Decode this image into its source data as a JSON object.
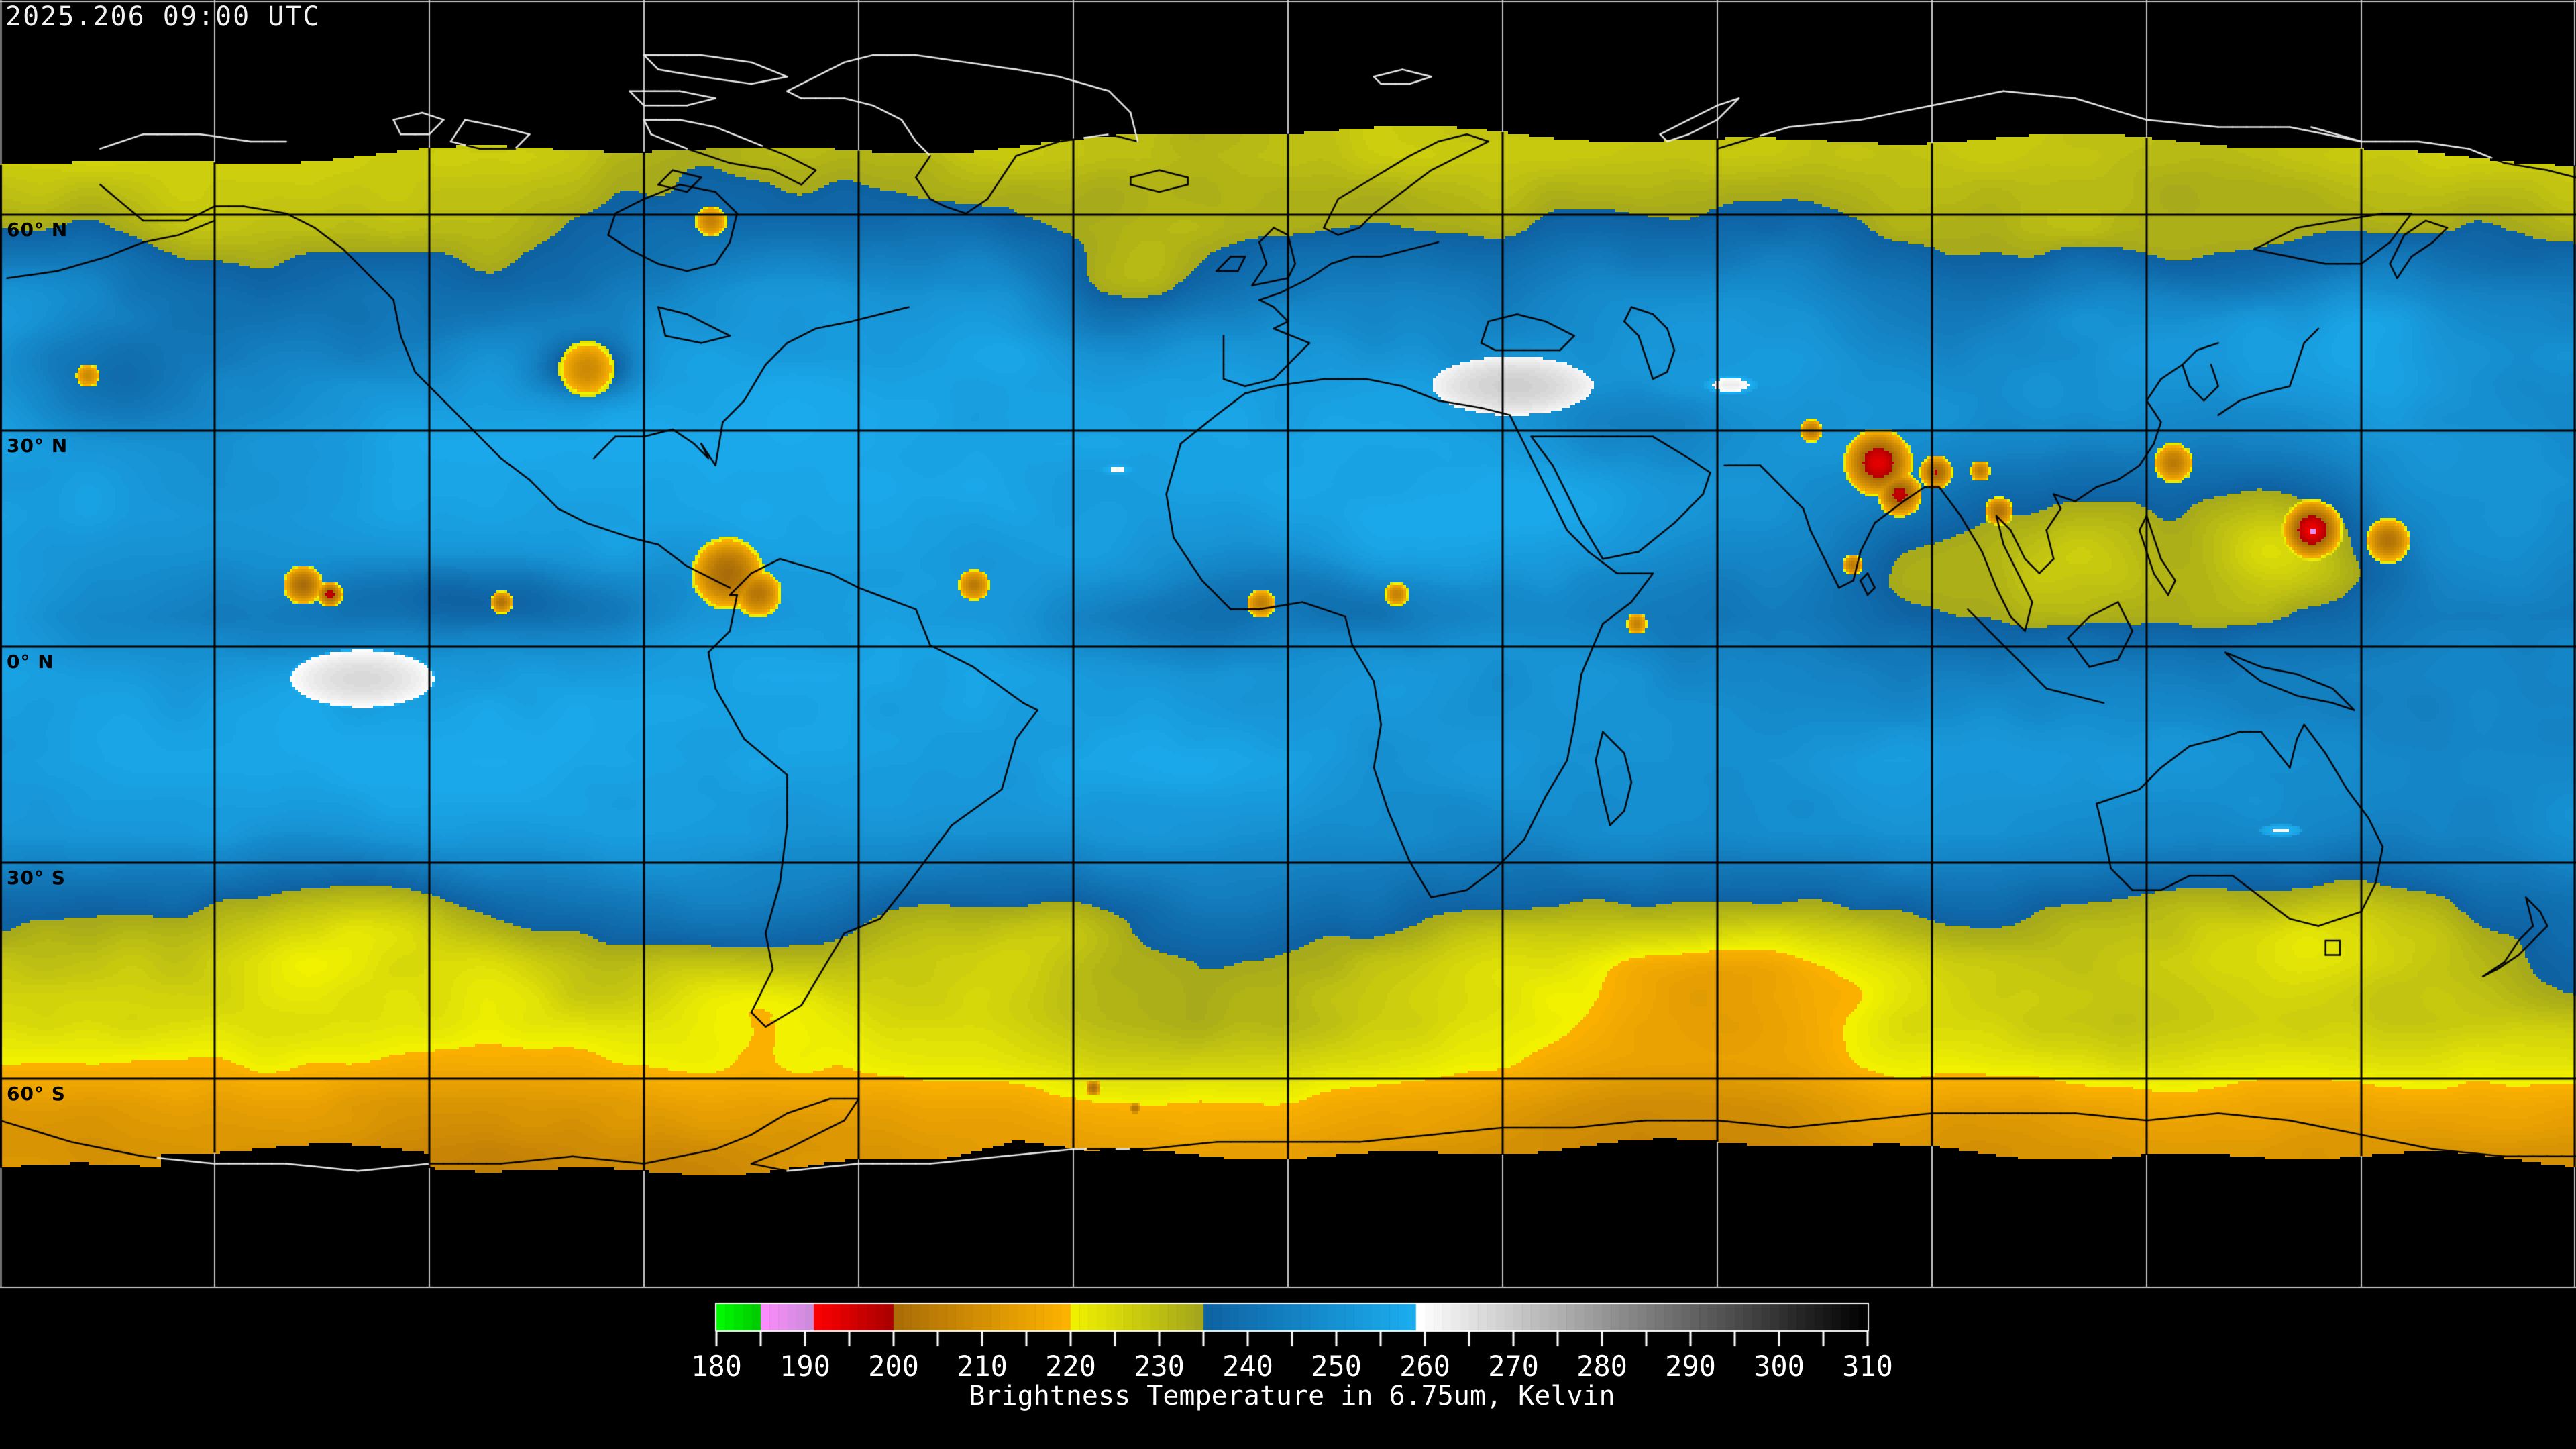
{
  "header": {
    "timestamp": "2025.206 09:00 UTC"
  },
  "map": {
    "latitude_labels": [
      "60° N",
      "30° N",
      "0° N",
      "30° S",
      "60° S"
    ],
    "grid": {
      "lat_spacing_deg": 30,
      "lon_spacing_deg": 30
    }
  },
  "colorbar": {
    "title": "Brightness Temperature in 6.75um, Kelvin",
    "min": 180,
    "max": 310,
    "tick_step": 5,
    "label_step": 10,
    "tick_labels": [
      "180",
      "190",
      "200",
      "210",
      "220",
      "230",
      "240",
      "250",
      "260",
      "270",
      "280",
      "290",
      "300",
      "310"
    ],
    "segments": [
      {
        "name": "green",
        "from": 180,
        "to": 185,
        "color_from": "#00ff00",
        "color_to": "#00c800"
      },
      {
        "name": "violet",
        "from": 185,
        "to": 191,
        "color_from": "#ff8cff",
        "color_to": "#c88cd8"
      },
      {
        "name": "red",
        "from": 191,
        "to": 200,
        "color_from": "#ff0000",
        "color_to": "#a80000"
      },
      {
        "name": "orange",
        "from": 200,
        "to": 220,
        "color_from": "#aa6c08",
        "color_to": "#ffb400"
      },
      {
        "name": "yellow",
        "from": 220,
        "to": 235,
        "color_from": "#f2f200",
        "color_to": "#a2a51c"
      },
      {
        "name": "blue",
        "from": 235,
        "to": 259.5,
        "color_from": "#0e62a2",
        "color_to": "#1cb0f2"
      },
      {
        "name": "grayscale",
        "from": 259.5,
        "to": 310,
        "color_from": "#ffffff",
        "color_to": "#000000"
      }
    ]
  }
}
